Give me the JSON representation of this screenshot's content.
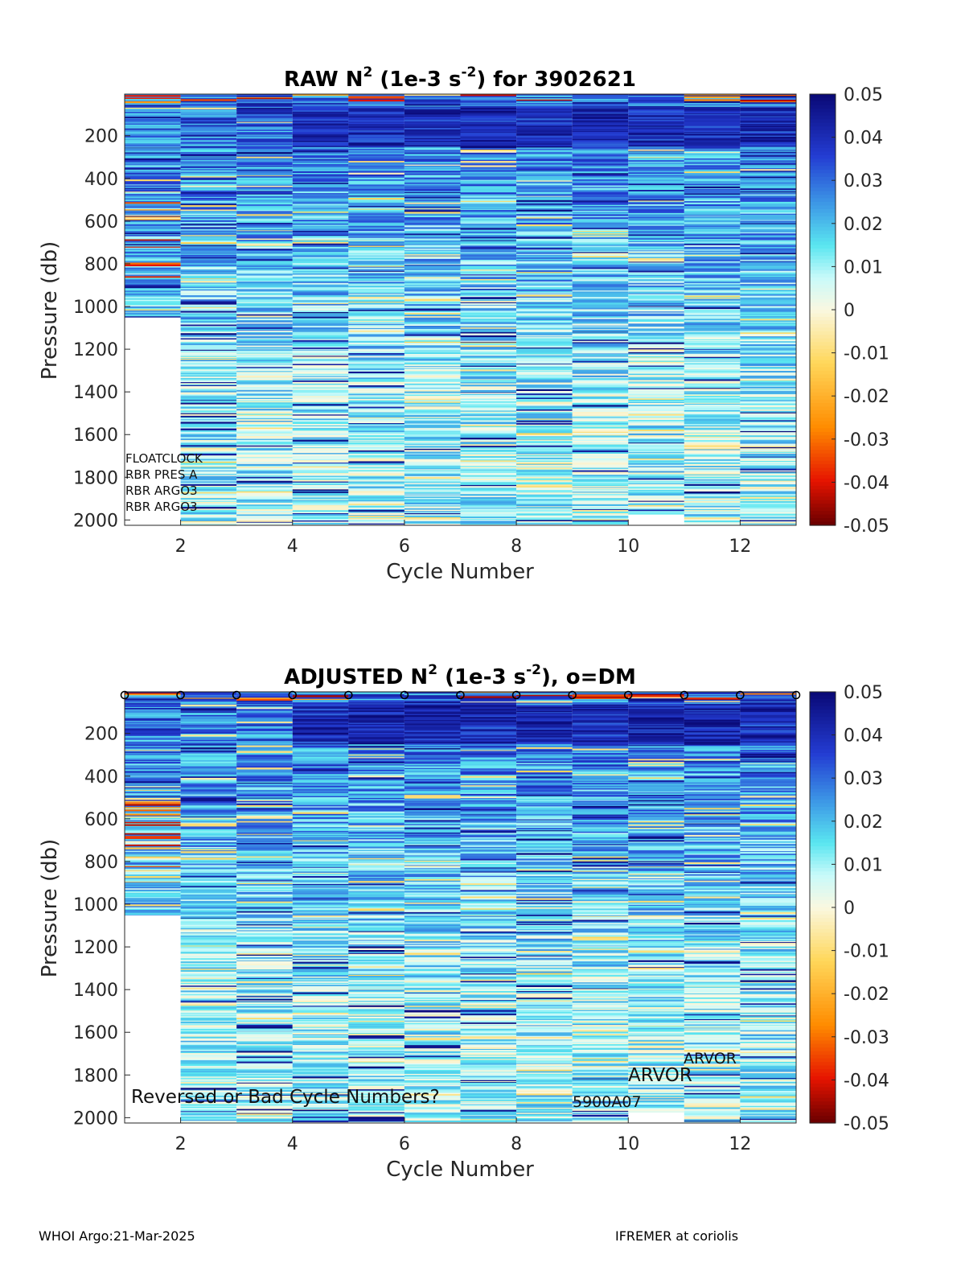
{
  "chart_data": [
    {
      "type": "heatmap",
      "title_main": "RAW N",
      "title_sup": "2",
      "title_mid": " (1e-3 s",
      "title_sup2": "-2",
      "title_end": ") for 3902621",
      "xlabel": "Cycle Number",
      "ylabel": "Pressure (db)",
      "xlim": [
        1,
        13
      ],
      "ylim": [
        2025,
        5
      ],
      "y_reversed": true,
      "xticks": [
        2,
        4,
        6,
        8,
        10,
        12
      ],
      "yticks": [
        200,
        400,
        600,
        800,
        1000,
        1200,
        1400,
        1600,
        1800,
        2000
      ],
      "colorbar": {
        "min": -0.05,
        "max": 0.05,
        "ticks": [
          "0.05",
          "0.04",
          "0.03",
          "0.02",
          "0.01",
          "0",
          "-0.01",
          "-0.02",
          "-0.03",
          "-0.04",
          "-0.05"
        ],
        "colormap": "blue-cyan-white-yellow-red"
      },
      "cycles": [
        1,
        2,
        3,
        4,
        5,
        6,
        7,
        8,
        9,
        10,
        11,
        12
      ],
      "profile_max_pressure": [
        1050,
        2020,
        2020,
        2020,
        2020,
        2020,
        2020,
        2020,
        2020,
        1975,
        2020,
        2020
      ],
      "annotations": [
        "FLOATCLOCK",
        "RBR PRES A",
        "RBR ARGO3",
        "RBR ARGO3"
      ],
      "dm_markers": false,
      "seed": 11
    },
    {
      "type": "heatmap",
      "title_main": "ADJUSTED N",
      "title_sup": "2",
      "title_mid": " (1e-3 s",
      "title_sup2": "-2",
      "title_end": "), o=DM",
      "xlabel": "Cycle Number",
      "ylabel": "Pressure (db)",
      "xlim": [
        1,
        13
      ],
      "ylim": [
        2025,
        5
      ],
      "y_reversed": true,
      "xticks": [
        2,
        4,
        6,
        8,
        10,
        12
      ],
      "yticks": [
        200,
        400,
        600,
        800,
        1000,
        1200,
        1400,
        1600,
        1800,
        2000
      ],
      "colorbar": {
        "min": -0.05,
        "max": 0.05,
        "ticks": [
          "0.05",
          "0.04",
          "0.03",
          "0.02",
          "0.01",
          "0",
          "-0.01",
          "-0.02",
          "-0.03",
          "-0.04",
          "-0.05"
        ],
        "colormap": "blue-cyan-white-yellow-red"
      },
      "cycles": [
        1,
        2,
        3,
        4,
        5,
        6,
        7,
        8,
        9,
        10,
        11,
        12
      ],
      "profile_max_pressure": [
        1050,
        2020,
        2020,
        2020,
        2020,
        2020,
        2020,
        2020,
        2020,
        1975,
        2020,
        2020
      ],
      "annotations": [
        "Reversed or Bad Cycle Numbers?",
        "5900A07",
        "ARVOR",
        "ARVOR"
      ],
      "dm_markers": true,
      "dm_cycles": [
        1,
        2,
        3,
        4,
        5,
        6,
        7,
        8,
        9,
        10,
        11,
        12,
        13
      ],
      "seed": 29
    }
  ],
  "footer": {
    "left": "WHOI Argo:21-Mar-2025",
    "right": "IFREMER at coriolis"
  }
}
